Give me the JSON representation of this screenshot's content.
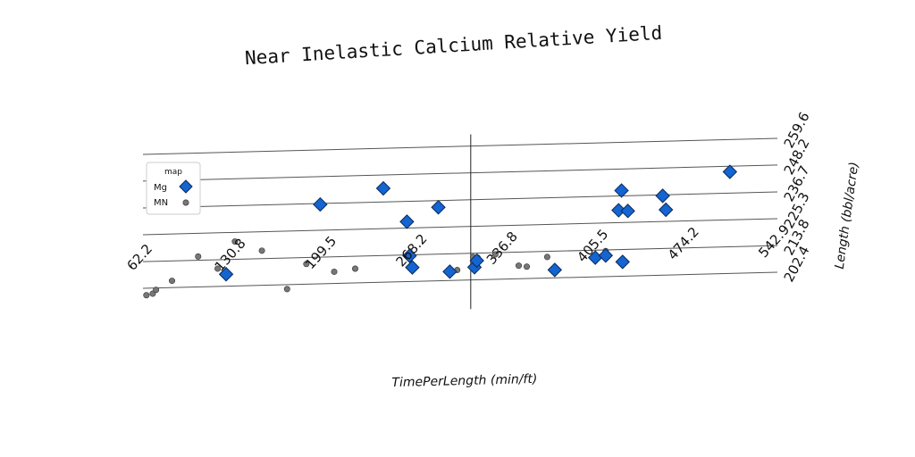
{
  "chart_data": {
    "type": "scatter",
    "title": "Near Inelastic Calcium Relative Yield",
    "xlabel": "TimePerLength (min/ft)",
    "ylabel": "Length (bbl/acre)",
    "xlim": [
      62.2,
      542.9
    ],
    "ylim": [
      202.4,
      259.6
    ],
    "x_ticks": [
      "62.2",
      "130.8",
      "199.5",
      "268.2",
      "336.8",
      "405.5",
      "474.2",
      "542.9"
    ],
    "y_ticks": [
      "202.4",
      "213.8",
      "225.3",
      "236.7",
      "248.2",
      "259.6"
    ],
    "grid": true,
    "legend": {
      "title": "map",
      "position": "left",
      "entries": [
        "Mg",
        "MN"
      ]
    },
    "series": [
      {
        "name": "Mg",
        "marker": "diamond",
        "color": "#1464d2",
        "points": [
          [
            125.2,
            207.5
          ],
          [
            196.5,
            236.3
          ],
          [
            244.3,
            242.5
          ],
          [
            264.2,
            213.4
          ],
          [
            262.2,
            228.0
          ],
          [
            266.3,
            208.4
          ],
          [
            286.0,
            233.8
          ],
          [
            294.7,
            206.2
          ],
          [
            313.4,
            207.8
          ],
          [
            315.2,
            210.6
          ],
          [
            374.2,
            205.8
          ],
          [
            404.9,
            210.6
          ],
          [
            412.8,
            211.4
          ],
          [
            425.6,
            208.5
          ],
          [
            422.6,
            230.6
          ],
          [
            424.8,
            239.0
          ],
          [
            429.6,
            230.2
          ],
          [
            458.4,
            230.3
          ],
          [
            456.0,
            236.3
          ],
          [
            506.9,
            245.8
          ]
        ]
      },
      {
        "name": "MN",
        "marker": "circle",
        "color": "#777777",
        "points": [
          [
            64.8,
            199.4
          ],
          [
            69.6,
            200.0
          ],
          [
            72.1,
            201.6
          ],
          [
            84.2,
            205.3
          ],
          [
            104.0,
            215.4
          ],
          [
            118.8,
            210.0
          ],
          [
            131.9,
            221.4
          ],
          [
            152.3,
            217.2
          ],
          [
            171.4,
            200.5
          ],
          [
            186.0,
            211.0
          ],
          [
            207.1,
            207.4
          ],
          [
            223.0,
            208.5
          ],
          [
            300.3,
            206.8
          ],
          [
            312.3,
            212.2
          ],
          [
            315.7,
            211.9
          ],
          [
            329.2,
            213.1
          ],
          [
            346.9,
            208.0
          ],
          [
            353.0,
            207.5
          ],
          [
            368.5,
            211.4
          ],
          [
            412.8,
            213.3
          ]
        ]
      }
    ]
  }
}
